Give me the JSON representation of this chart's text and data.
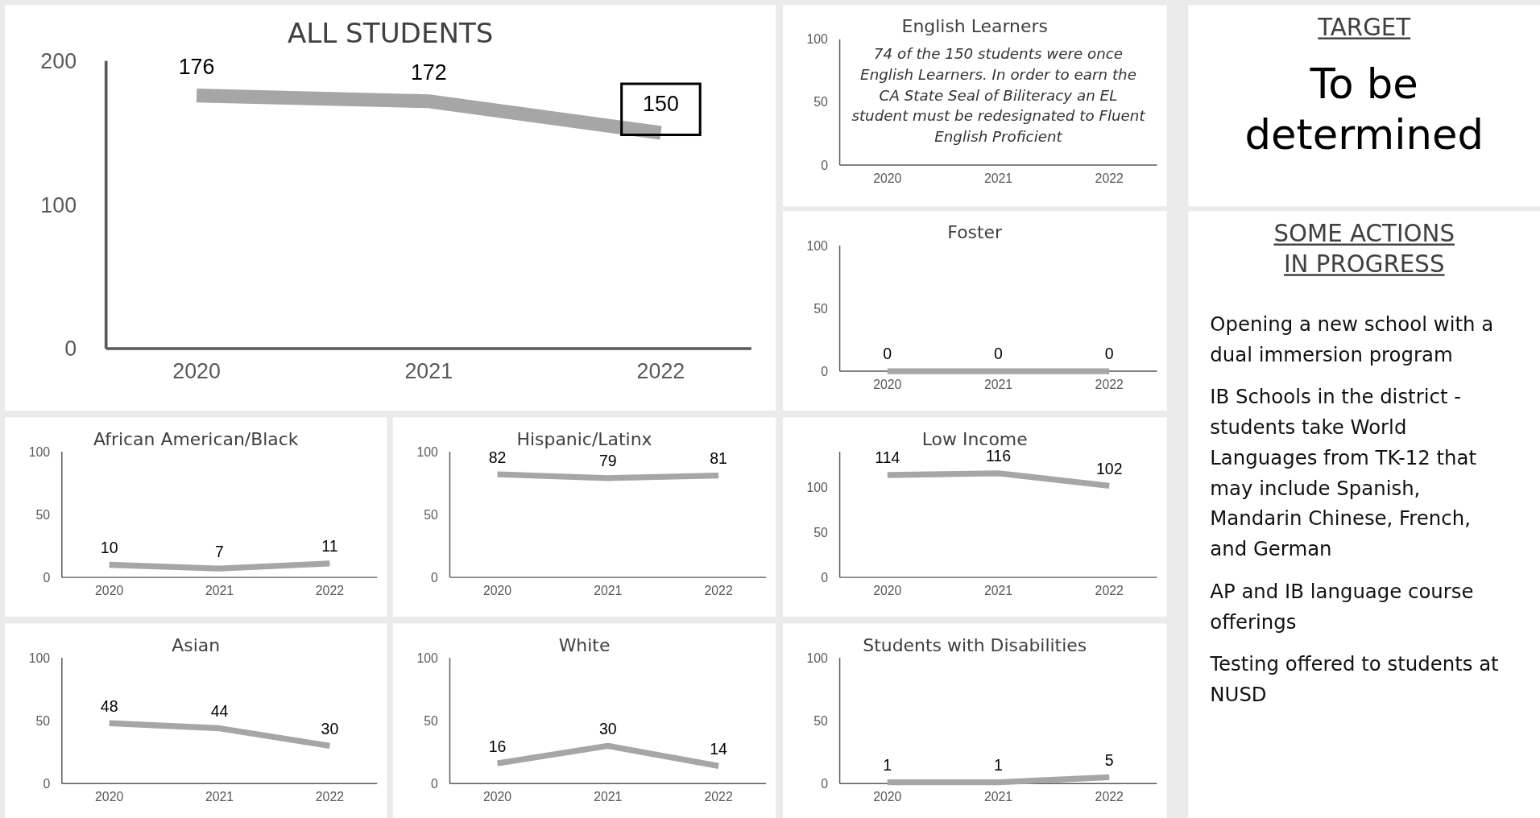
{
  "chart_data": [
    {
      "type": "line",
      "title": "ALL STUDENTS",
      "categories": [
        "2020",
        "2021",
        "2022"
      ],
      "series": [
        {
          "color": "#a6a6a6",
          "values": [
            176,
            172,
            150
          ]
        }
      ],
      "ylim": [
        0,
        200
      ],
      "yticks": [
        0,
        100,
        200
      ],
      "data_labels": true
    },
    {
      "type": "line",
      "title": "English Learners",
      "categories": [
        "2020",
        "2021",
        "2022"
      ],
      "ylim": [
        0,
        100
      ],
      "yticks": [
        0,
        50,
        100
      ],
      "annotations": [
        "74 of the 150 students were once English Learners.  In order to earn the CA State Seal of Biliteracy an EL student must be redesignated to Fluent English Proficient"
      ]
    },
    {
      "type": "other",
      "title": "TARGET",
      "annotations": [
        "To be determined"
      ]
    },
    {
      "type": "line",
      "title": "Foster",
      "categories": [
        "2020",
        "2021",
        "2022"
      ],
      "series": [
        {
          "color": "#a6a6a6",
          "values": [
            0,
            0,
            0
          ]
        }
      ],
      "ylim": [
        0,
        100
      ],
      "yticks": [
        0,
        50,
        100
      ],
      "data_labels": true
    },
    {
      "type": "other",
      "title": "SOME ACTIONS IN PROGRESS",
      "annotations": [
        "Opening a new school with a dual immersion program",
        "IB Schools in the district - students take World Languages from TK-12 that may include Spanish, Mandarin Chinese, French, and German",
        "AP and IB language course offerings",
        "Testing offered to students at NUSD"
      ]
    },
    {
      "type": "line",
      "title": "African American/Black",
      "categories": [
        "2020",
        "2021",
        "2022"
      ],
      "series": [
        {
          "color": "#a6a6a6",
          "values": [
            10,
            7,
            11
          ]
        }
      ],
      "ylim": [
        0,
        100
      ],
      "yticks": [
        0,
        50,
        100
      ],
      "data_labels": true
    },
    {
      "type": "line",
      "title": "Hispanic/Latinx",
      "categories": [
        "2020",
        "2021",
        "2022"
      ],
      "series": [
        {
          "color": "#a6a6a6",
          "values": [
            82,
            79,
            81
          ]
        }
      ],
      "ylim": [
        0,
        100
      ],
      "yticks": [
        0,
        50,
        100
      ],
      "data_labels": true
    },
    {
      "type": "line",
      "title": "Low Income",
      "categories": [
        "2020",
        "2021",
        "2022"
      ],
      "series": [
        {
          "color": "#a6a6a6",
          "values": [
            114,
            116,
            102
          ]
        }
      ],
      "ylim": [
        0,
        140
      ],
      "yticks": [
        0,
        50,
        100
      ],
      "data_labels": true
    },
    {
      "type": "line",
      "title": "Asian",
      "categories": [
        "2020",
        "2021",
        "2022"
      ],
      "series": [
        {
          "color": "#a6a6a6",
          "values": [
            48,
            44,
            30
          ]
        }
      ],
      "ylim": [
        0,
        100
      ],
      "yticks": [
        0,
        50,
        100
      ],
      "data_labels": true
    },
    {
      "type": "line",
      "title": "White",
      "categories": [
        "2020",
        "2021",
        "2022"
      ],
      "series": [
        {
          "color": "#a6a6a6",
          "values": [
            16,
            30,
            14
          ]
        }
      ],
      "ylim": [
        0,
        100
      ],
      "yticks": [
        0,
        50,
        100
      ],
      "data_labels": true
    },
    {
      "type": "line",
      "title": "Students with Disabilities",
      "categories": [
        "2020",
        "2021",
        "2022"
      ],
      "series": [
        {
          "color": "#a6a6a6",
          "values": [
            1,
            1,
            5
          ]
        }
      ],
      "ylim": [
        0,
        100
      ],
      "yticks": [
        0,
        50,
        100
      ],
      "data_labels": true
    }
  ]
}
